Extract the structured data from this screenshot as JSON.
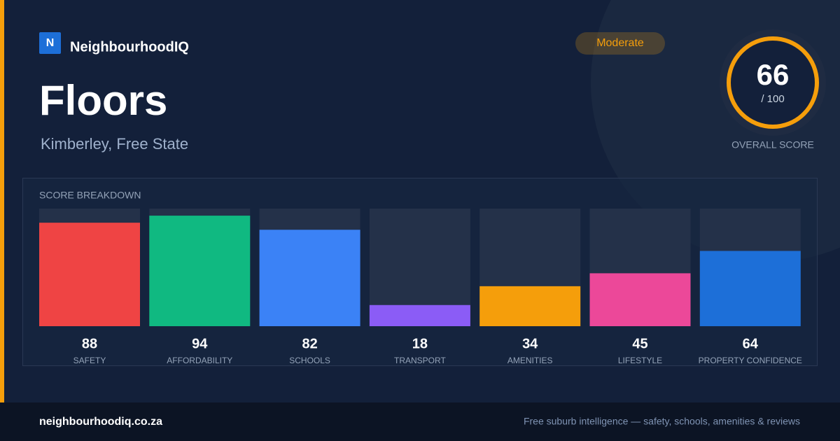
{
  "brand": {
    "logo": "N",
    "name": "NeighbourhoodIQ"
  },
  "header": {
    "title": "Floors",
    "subtitle": "Kimberley, Free State",
    "badge": "Moderate"
  },
  "score": {
    "value": 66,
    "max": {
      "value": 100,
      "label": "/ 100"
    },
    "label": "OVERALL SCORE"
  },
  "breakdown": {
    "title": "SCORE BREAKDOWN",
    "items": [
      {
        "label": "SAFETY",
        "value": 88,
        "color": "#ef4444"
      },
      {
        "label": "AFFORDABILITY",
        "value": 94,
        "color": "#10b981"
      },
      {
        "label": "SCHOOLS",
        "value": 82,
        "color": "#3b82f6"
      },
      {
        "label": "TRANSPORT",
        "value": 18,
        "color": "#8b5cf6"
      },
      {
        "label": "AMENITIES",
        "value": 34,
        "color": "#f59e0b"
      },
      {
        "label": "LIFESTYLE",
        "value": 45,
        "color": "#ec4899"
      },
      {
        "label": "PROPERTY CONFIDENCE",
        "value": 64,
        "color": "#1d6fd8"
      }
    ]
  },
  "footer": {
    "site": "neighbourhoodiq.co.za",
    "tagline": "Free suburb intelligence — safety, schools, amenities & reviews"
  }
}
